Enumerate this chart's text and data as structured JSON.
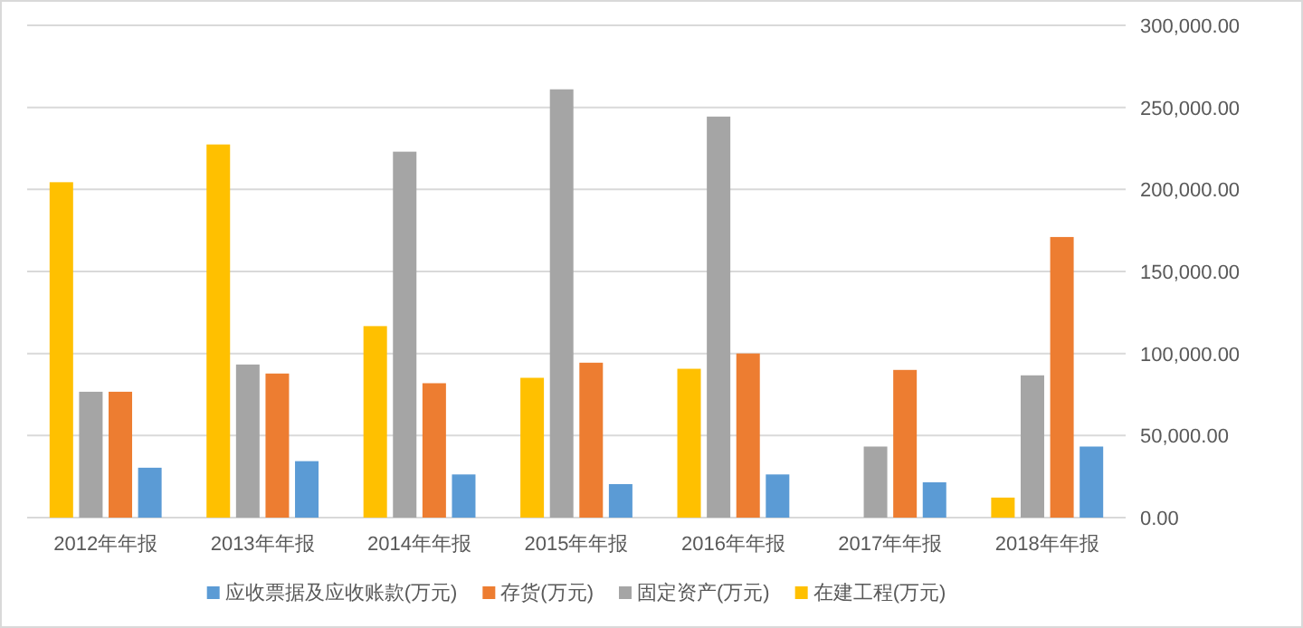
{
  "chart_data": {
    "type": "bar",
    "categories": [
      "2012年年报",
      "2013年年报",
      "2014年年报",
      "2015年年报",
      "2016年年报",
      "2017年年报",
      "2018年年报"
    ],
    "series": [
      {
        "name": "应收票据及应收账款(万元)",
        "color": "#5b9bd5",
        "values": [
          30400,
          34400,
          26300,
          20400,
          26300,
          21500,
          43300
        ]
      },
      {
        "name": "存货(万元)",
        "color": "#ed7d31",
        "values": [
          76700,
          87800,
          81900,
          94400,
          100000,
          90000,
          171000
        ]
      },
      {
        "name": "固定资产(万元)",
        "color": "#a5a5a5",
        "values": [
          76700,
          93300,
          223000,
          261000,
          244400,
          43300,
          86700
        ]
      },
      {
        "name": "在建工程(万元)",
        "color": "#ffc000",
        "values": [
          204400,
          227400,
          116700,
          85200,
          90700,
          null,
          12200
        ]
      }
    ],
    "ylim": [
      0,
      300000
    ],
    "yticks": [
      {
        "value": 0,
        "label": "0.00"
      },
      {
        "value": 50000,
        "label": "50,000.00"
      },
      {
        "value": 100000,
        "label": "100,000.00"
      },
      {
        "value": 150000,
        "label": "150,000.00"
      },
      {
        "value": 200000,
        "label": "200,000.00"
      },
      {
        "value": 250000,
        "label": "250,000.00"
      },
      {
        "value": 300000,
        "label": "300,000.00"
      }
    ],
    "grid": "y",
    "legend": "bottom"
  }
}
